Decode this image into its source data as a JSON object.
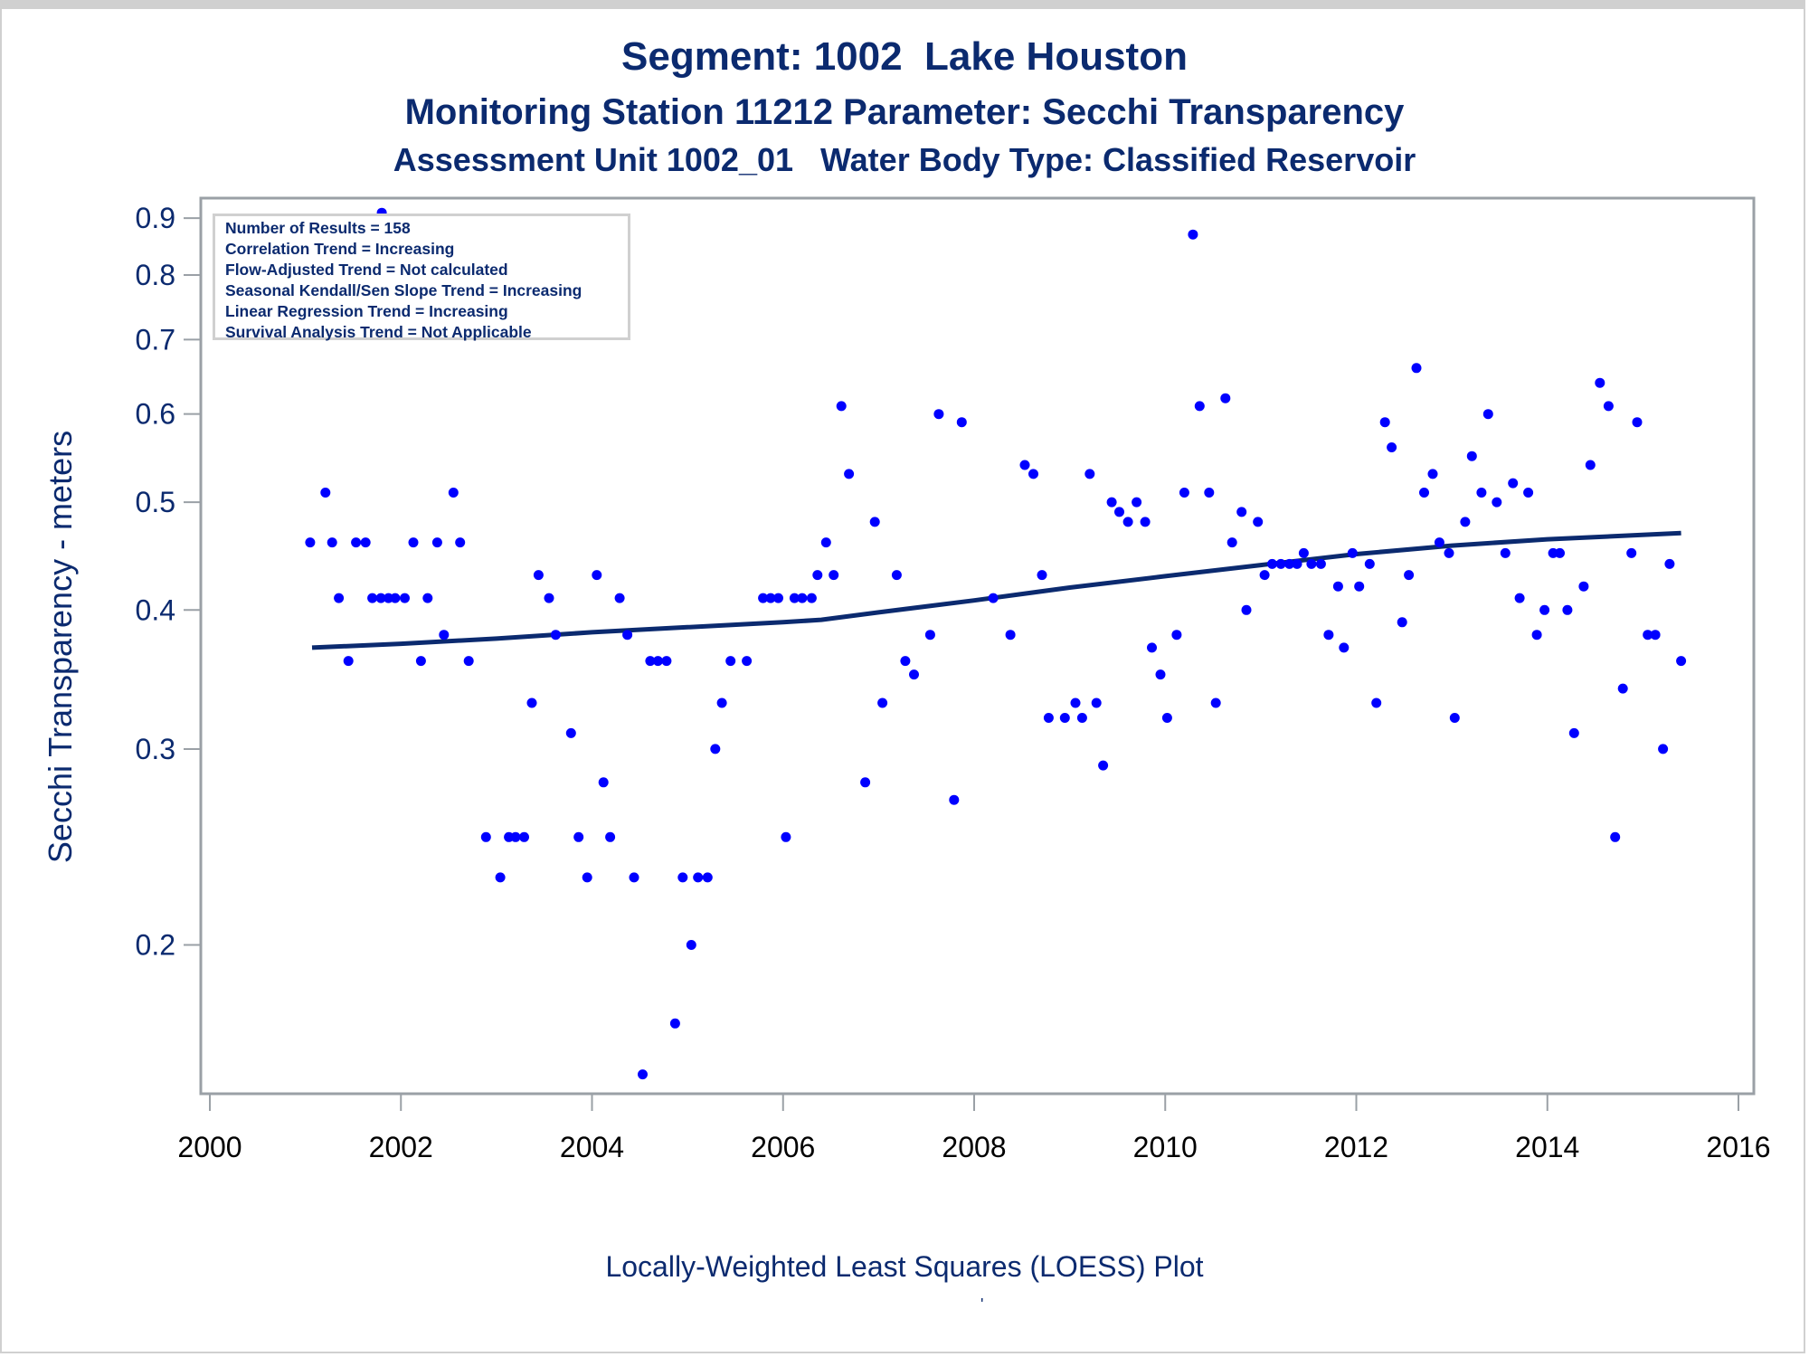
{
  "titles": {
    "line1": "Segment: 1002  Lake Houston",
    "line2": "Monitoring Station 11212 Parameter: Secchi Transparency",
    "line3": "Assessment Unit 1002_01   Water Body Type: Classified Reservoir"
  },
  "legend": {
    "lines": [
      "Number of Results = 158",
      "Correlation Trend = Increasing",
      "Flow-Adjusted Trend = Not calculated",
      "Seasonal Kendall/Sen Slope Trend = Increasing",
      "Linear Regression Trend = Increasing",
      "Survival Analysis Trend = Not Applicable"
    ]
  },
  "caption": "Locally-Weighted Least Squares (LOESS) Plot",
  "caption_mark": "'",
  "colors": {
    "points": "#0000ff",
    "loess": "#0b2a6f",
    "text": "#0b2a6f",
    "axis": "#9aa0a6"
  },
  "chart_data": {
    "type": "scatter",
    "title": "Segment: 1002  Lake Houston",
    "xlabel": "",
    "ylabel": "Secchi Transparency - meters",
    "yscale": "log",
    "xlim": [
      2000,
      2016
    ],
    "ylim": [
      0.147,
      0.938
    ],
    "xticks": [
      2000,
      2002,
      2004,
      2006,
      2008,
      2010,
      2012,
      2014,
      2016
    ],
    "yticks": [
      0.2,
      0.3,
      0.4,
      0.5,
      0.6,
      0.7,
      0.8,
      0.9
    ],
    "ytick_labels": [
      "0.2",
      "0.3",
      "0.4",
      "0.5",
      "0.6",
      "0.7",
      "0.8",
      "0.9"
    ],
    "grid": false,
    "legend_position": "top-left",
    "series": [
      {
        "name": "Secchi Transparency",
        "kind": "points",
        "points": [
          [
            2001.05,
            0.46
          ],
          [
            2001.21,
            0.51
          ],
          [
            2001.28,
            0.46
          ],
          [
            2001.35,
            0.41
          ],
          [
            2001.45,
            0.36
          ],
          [
            2001.53,
            0.46
          ],
          [
            2001.63,
            0.46
          ],
          [
            2001.7,
            0.41
          ],
          [
            2001.79,
            0.41
          ],
          [
            2001.8,
            0.91
          ],
          [
            2001.87,
            0.41
          ],
          [
            2001.94,
            0.41
          ],
          [
            2002.04,
            0.41
          ],
          [
            2002.13,
            0.46
          ],
          [
            2002.21,
            0.36
          ],
          [
            2002.28,
            0.41
          ],
          [
            2002.38,
            0.46
          ],
          [
            2002.45,
            0.38
          ],
          [
            2002.55,
            0.51
          ],
          [
            2002.62,
            0.46
          ],
          [
            2002.71,
            0.36
          ],
          [
            2002.89,
            0.25
          ],
          [
            2003.04,
            0.23
          ],
          [
            2003.13,
            0.25
          ],
          [
            2003.2,
            0.25
          ],
          [
            2003.29,
            0.25
          ],
          [
            2003.37,
            0.33
          ],
          [
            2003.44,
            0.43
          ],
          [
            2003.55,
            0.41
          ],
          [
            2003.62,
            0.38
          ],
          [
            2003.78,
            0.31
          ],
          [
            2003.86,
            0.25
          ],
          [
            2003.95,
            0.23
          ],
          [
            2004.05,
            0.43
          ],
          [
            2004.12,
            0.28
          ],
          [
            2004.19,
            0.25
          ],
          [
            2004.29,
            0.41
          ],
          [
            2004.37,
            0.38
          ],
          [
            2004.44,
            0.23
          ],
          [
            2004.53,
            0.153
          ],
          [
            2004.61,
            0.36
          ],
          [
            2004.69,
            0.36
          ],
          [
            2004.78,
            0.36
          ],
          [
            2004.87,
            0.17
          ],
          [
            2004.95,
            0.23
          ],
          [
            2005.04,
            0.2
          ],
          [
            2005.11,
            0.23
          ],
          [
            2005.21,
            0.23
          ],
          [
            2005.29,
            0.3
          ],
          [
            2005.36,
            0.33
          ],
          [
            2005.45,
            0.36
          ],
          [
            2005.62,
            0.36
          ],
          [
            2005.79,
            0.41
          ],
          [
            2005.87,
            0.41
          ],
          [
            2005.95,
            0.41
          ],
          [
            2006.03,
            0.25
          ],
          [
            2006.12,
            0.41
          ],
          [
            2006.2,
            0.41
          ],
          [
            2006.3,
            0.41
          ],
          [
            2006.36,
            0.43
          ],
          [
            2006.45,
            0.46
          ],
          [
            2006.53,
            0.43
          ],
          [
            2006.61,
            0.61
          ],
          [
            2006.69,
            0.53
          ],
          [
            2006.86,
            0.28
          ],
          [
            2006.96,
            0.48
          ],
          [
            2007.04,
            0.33
          ],
          [
            2007.19,
            0.43
          ],
          [
            2007.28,
            0.36
          ],
          [
            2007.37,
            0.35
          ],
          [
            2007.54,
            0.38
          ],
          [
            2007.63,
            0.6
          ],
          [
            2007.79,
            0.27
          ],
          [
            2007.87,
            0.59
          ],
          [
            2008.2,
            0.41
          ],
          [
            2008.38,
            0.38
          ],
          [
            2008.53,
            0.54
          ],
          [
            2008.62,
            0.53
          ],
          [
            2008.71,
            0.43
          ],
          [
            2008.78,
            0.32
          ],
          [
            2008.95,
            0.32
          ],
          [
            2009.06,
            0.33
          ],
          [
            2009.13,
            0.32
          ],
          [
            2009.21,
            0.53
          ],
          [
            2009.28,
            0.33
          ],
          [
            2009.35,
            0.29
          ],
          [
            2009.44,
            0.5
          ],
          [
            2009.52,
            0.49
          ],
          [
            2009.61,
            0.48
          ],
          [
            2009.7,
            0.5
          ],
          [
            2009.79,
            0.48
          ],
          [
            2009.86,
            0.37
          ],
          [
            2009.95,
            0.35
          ],
          [
            2010.02,
            0.32
          ],
          [
            2010.12,
            0.38
          ],
          [
            2010.2,
            0.51
          ],
          [
            2010.29,
            0.87
          ],
          [
            2010.36,
            0.61
          ],
          [
            2010.46,
            0.51
          ],
          [
            2010.53,
            0.33
          ],
          [
            2010.63,
            0.62
          ],
          [
            2010.7,
            0.46
          ],
          [
            2010.8,
            0.49
          ],
          [
            2010.85,
            0.4
          ],
          [
            2010.97,
            0.48
          ],
          [
            2011.04,
            0.43
          ],
          [
            2011.12,
            0.44
          ],
          [
            2011.21,
            0.44
          ],
          [
            2011.3,
            0.44
          ],
          [
            2011.38,
            0.44
          ],
          [
            2011.45,
            0.45
          ],
          [
            2011.53,
            0.44
          ],
          [
            2011.63,
            0.44
          ],
          [
            2011.71,
            0.38
          ],
          [
            2011.81,
            0.42
          ],
          [
            2011.87,
            0.37
          ],
          [
            2011.96,
            0.45
          ],
          [
            2012.03,
            0.42
          ],
          [
            2012.14,
            0.44
          ],
          [
            2012.21,
            0.33
          ],
          [
            2012.3,
            0.59
          ],
          [
            2012.37,
            0.56
          ],
          [
            2012.48,
            0.39
          ],
          [
            2012.55,
            0.43
          ],
          [
            2012.63,
            0.66
          ],
          [
            2012.71,
            0.51
          ],
          [
            2012.8,
            0.53
          ],
          [
            2012.87,
            0.46
          ],
          [
            2012.97,
            0.45
          ],
          [
            2013.03,
            0.32
          ],
          [
            2013.14,
            0.48
          ],
          [
            2013.21,
            0.55
          ],
          [
            2013.31,
            0.51
          ],
          [
            2013.38,
            0.6
          ],
          [
            2013.47,
            0.5
          ],
          [
            2013.56,
            0.45
          ],
          [
            2013.64,
            0.52
          ],
          [
            2013.71,
            0.41
          ],
          [
            2013.8,
            0.51
          ],
          [
            2013.89,
            0.38
          ],
          [
            2013.97,
            0.4
          ],
          [
            2014.06,
            0.45
          ],
          [
            2014.13,
            0.45
          ],
          [
            2014.21,
            0.4
          ],
          [
            2014.28,
            0.31
          ],
          [
            2014.38,
            0.42
          ],
          [
            2014.45,
            0.54
          ],
          [
            2014.55,
            0.64
          ],
          [
            2014.64,
            0.61
          ],
          [
            2014.71,
            0.25
          ],
          [
            2014.79,
            0.34
          ],
          [
            2014.88,
            0.45
          ],
          [
            2014.94,
            0.59
          ],
          [
            2015.05,
            0.38
          ],
          [
            2015.13,
            0.38
          ],
          [
            2015.21,
            0.3
          ],
          [
            2015.28,
            0.44
          ],
          [
            2015.4,
            0.36
          ]
        ]
      },
      {
        "name": "LOESS fit",
        "kind": "line",
        "points": [
          [
            2001.07,
            0.37
          ],
          [
            2002.0,
            0.373
          ],
          [
            2003.0,
            0.377
          ],
          [
            2004.0,
            0.382
          ],
          [
            2005.0,
            0.386
          ],
          [
            2006.0,
            0.39
          ],
          [
            2006.4,
            0.392
          ],
          [
            2007.0,
            0.398
          ],
          [
            2008.0,
            0.408
          ],
          [
            2009.0,
            0.419
          ],
          [
            2010.0,
            0.429
          ],
          [
            2011.0,
            0.439
          ],
          [
            2012.0,
            0.449
          ],
          [
            2013.0,
            0.457
          ],
          [
            2014.0,
            0.463
          ],
          [
            2015.4,
            0.469
          ]
        ]
      }
    ]
  }
}
